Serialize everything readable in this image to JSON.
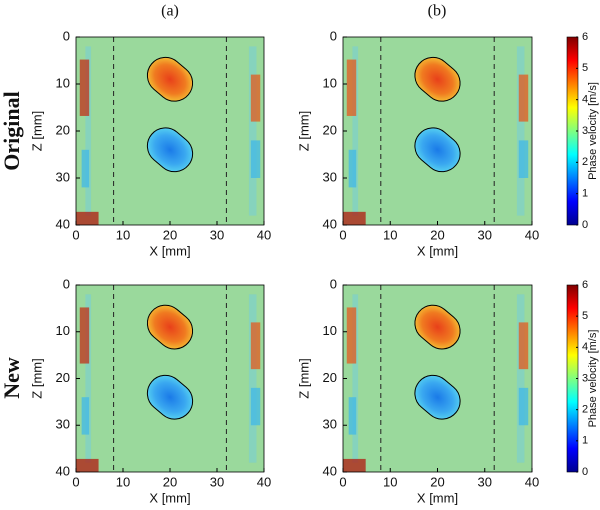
{
  "columns": [
    "(a)",
    "(b)"
  ],
  "rows": [
    "Original",
    "New"
  ],
  "chart_data": [
    {
      "type": "heatmap",
      "xlabel": "X [mm]",
      "ylabel": "Z [mm]",
      "xlim": [
        0,
        40
      ],
      "ylim": [
        0,
        40
      ],
      "y_inverted": true,
      "xticks": [
        0,
        10,
        20,
        30,
        40
      ],
      "yticks": [
        0,
        10,
        20,
        30,
        40
      ],
      "dashed_x": [
        8,
        32
      ],
      "inclusions": [
        {
          "x": 20,
          "z": 9
        },
        {
          "x": 20,
          "z": 24
        }
      ]
    },
    {
      "type": "heatmap",
      "xlabel": "X [mm]",
      "ylabel": "Z [mm]",
      "xlim": [
        0,
        40
      ],
      "ylim": [
        0,
        40
      ],
      "y_inverted": true,
      "xticks": [
        0,
        10,
        20,
        30,
        40
      ],
      "yticks": [
        0,
        10,
        20,
        30,
        40
      ],
      "dashed_x": [
        8,
        32
      ],
      "inclusions": [
        {
          "x": 20,
          "z": 9
        },
        {
          "x": 20,
          "z": 24
        }
      ],
      "colorbar": {
        "label": "Phase velocity [m/s]",
        "lim": [
          0,
          6
        ],
        "ticks": [
          0,
          1,
          2,
          3,
          4,
          5,
          6
        ]
      }
    },
    {
      "type": "heatmap",
      "xlabel": "X [mm]",
      "ylabel": "Z [mm]",
      "xlim": [
        0,
        40
      ],
      "ylim": [
        0,
        40
      ],
      "y_inverted": true,
      "xticks": [
        0,
        10,
        20,
        30,
        40
      ],
      "yticks": [
        0,
        10,
        20,
        30,
        40
      ],
      "dashed_x": [
        8,
        32
      ],
      "inclusions": [
        {
          "x": 20,
          "z": 9
        },
        {
          "x": 20,
          "z": 24
        }
      ]
    },
    {
      "type": "heatmap",
      "xlabel": "X [mm]",
      "ylabel": "Z [mm]",
      "xlim": [
        0,
        40
      ],
      "ylim": [
        0,
        40
      ],
      "y_inverted": true,
      "xticks": [
        0,
        10,
        20,
        30,
        40
      ],
      "yticks": [
        0,
        10,
        20,
        30,
        40
      ],
      "dashed_x": [
        8,
        32
      ],
      "inclusions": [
        {
          "x": 20,
          "z": 9
        },
        {
          "x": 20,
          "z": 24
        }
      ],
      "colorbar": {
        "label": "Phase velocity [m/s]",
        "lim": [
          0,
          6
        ],
        "ticks": [
          0,
          1,
          2,
          3,
          4,
          5,
          6
        ]
      }
    }
  ]
}
